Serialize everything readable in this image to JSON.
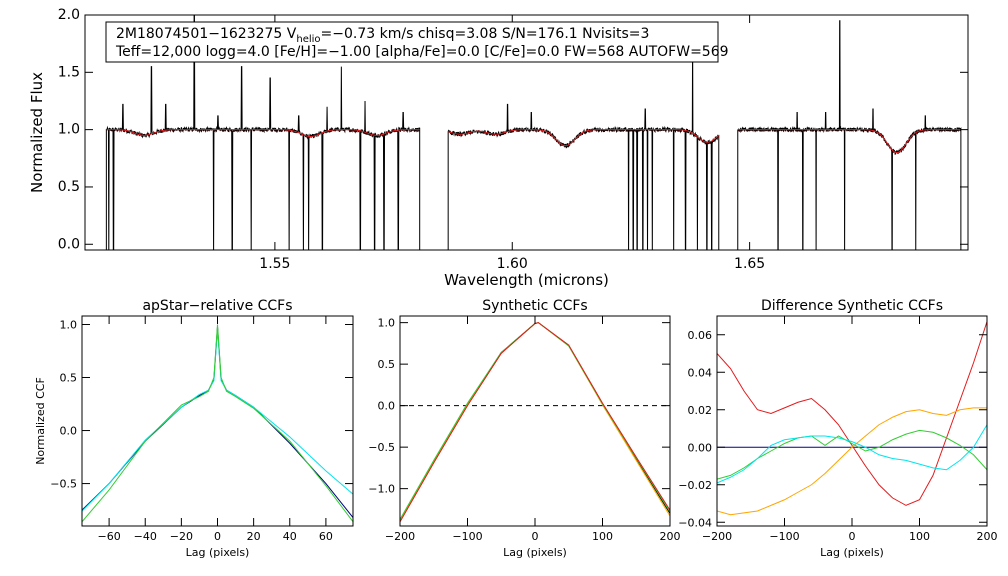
{
  "chart_data": [
    {
      "id": "spectrum",
      "type": "line",
      "xlabel": "Wavelength (microns)",
      "ylabel": "Normalized Flux",
      "xlim": [
        1.51,
        1.696
      ],
      "ylim": [
        -0.05,
        2.0
      ],
      "xticks": [
        1.55,
        1.6,
        1.65
      ],
      "xtick_labels": [
        "1.55",
        "1.60",
        "1.65"
      ],
      "yticks": [
        0.0,
        0.5,
        1.0,
        1.5,
        2.0
      ],
      "ytick_labels": [
        "0.0",
        "0.5",
        "1.0",
        "1.5",
        "2.0"
      ],
      "annotation": {
        "line1_pre": "2M18074501−1623275  V",
        "line1_sub": "helio",
        "line1_post": "=−0.73 km/s  chisq=3.08  S/N=176.1  Nvisits=3",
        "line2": "Teff=12,000 logg=4.0 [Fe/H]=−1.00 [alpha/Fe]=0.0 [C/Fe]=0.0 FW=568 AUTOFW=569"
      },
      "chips": [
        [
          1.5145,
          1.5805
        ],
        [
          1.5865,
          1.6435
        ],
        [
          1.6475,
          1.6945
        ]
      ],
      "absorption_lines": [
        {
          "x": 1.5225,
          "depth": 0.05
        },
        {
          "x": 1.5575,
          "depth": 0.06
        },
        {
          "x": 1.5715,
          "depth": 0.05
        },
        {
          "x": 1.589,
          "depth": 0.04
        },
        {
          "x": 1.5965,
          "depth": 0.04
        },
        {
          "x": 1.6112,
          "depth": 0.14
        },
        {
          "x": 1.6411,
          "depth": 0.11
        },
        {
          "x": 1.681,
          "depth": 0.2
        }
      ],
      "emission_spikes": [
        {
          "x": 1.518,
          "y": 1.22
        },
        {
          "x": 1.524,
          "y": 1.55
        },
        {
          "x": 1.527,
          "y": 1.22
        },
        {
          "x": 1.533,
          "y": 2.0
        },
        {
          "x": 1.538,
          "y": 1.12
        },
        {
          "x": 1.543,
          "y": 1.55
        },
        {
          "x": 1.549,
          "y": 1.45
        },
        {
          "x": 1.555,
          "y": 1.12
        },
        {
          "x": 1.561,
          "y": 1.2
        },
        {
          "x": 1.564,
          "y": 1.55
        },
        {
          "x": 1.569,
          "y": 1.25
        },
        {
          "x": 1.577,
          "y": 1.15
        },
        {
          "x": 1.599,
          "y": 1.22
        },
        {
          "x": 1.604,
          "y": 1.15
        },
        {
          "x": 1.628,
          "y": 1.18
        },
        {
          "x": 1.638,
          "y": 1.85
        },
        {
          "x": 1.66,
          "y": 1.15
        },
        {
          "x": 1.666,
          "y": 1.15
        },
        {
          "x": 1.669,
          "y": 1.95
        },
        {
          "x": 1.676,
          "y": 1.18
        },
        {
          "x": 1.687,
          "y": 1.12
        }
      ],
      "dropouts": [
        1.515,
        1.516,
        1.5371,
        1.541,
        1.545,
        1.553,
        1.556,
        1.5571,
        1.56,
        1.568,
        1.571,
        1.573,
        1.576,
        1.6245,
        1.6255,
        1.6263,
        1.6275,
        1.6285,
        1.6295,
        1.634,
        1.6365,
        1.639,
        1.641,
        1.642,
        1.656,
        1.66,
        1.6612,
        1.664,
        1.67,
        1.676,
        1.68,
        1.685,
        1.687
      ],
      "series": [
        {
          "name": "observed",
          "color": "#000000"
        },
        {
          "name": "model",
          "color": "#e31a1c"
        }
      ]
    },
    {
      "id": "apstar-ccf",
      "type": "line",
      "title": "apStar−relative CCFs",
      "xlabel": "Lag (pixels)",
      "ylabel": "Normalized CCF",
      "xlim": [
        -75,
        75
      ],
      "ylim": [
        -0.9,
        1.08
      ],
      "xticks": [
        -60,
        -40,
        -20,
        0,
        20,
        40,
        60
      ],
      "xtick_labels": [
        "−60",
        "−40",
        "−20",
        "0",
        "20",
        "40",
        "60"
      ],
      "yticks": [
        -0.5,
        0.0,
        0.5,
        1.0
      ],
      "ytick_labels": [
        "−0.5",
        "0.0",
        "0.5",
        "1.0"
      ],
      "series": [
        {
          "name": "ccf-1",
          "color": "#000080",
          "x": [
            -75,
            -60,
            -40,
            -20,
            -10,
            -5,
            -2,
            0,
            2,
            5,
            10,
            20,
            40,
            60,
            75
          ],
          "y": [
            -0.75,
            -0.5,
            -0.1,
            0.22,
            0.33,
            0.38,
            0.48,
            0.98,
            0.48,
            0.38,
            0.33,
            0.22,
            -0.12,
            -0.5,
            -0.82
          ]
        },
        {
          "name": "ccf-2",
          "color": "#00e5ee",
          "x": [
            -75,
            -60,
            -40,
            -20,
            -10,
            -5,
            -2,
            0,
            2,
            5,
            10,
            20,
            40,
            60,
            75
          ],
          "y": [
            -0.76,
            -0.5,
            -0.09,
            0.22,
            0.34,
            0.38,
            0.47,
            0.96,
            0.47,
            0.38,
            0.33,
            0.22,
            -0.06,
            -0.38,
            -0.6
          ]
        },
        {
          "name": "ccf-3",
          "color": "#32cd32",
          "x": [
            -75,
            -60,
            -40,
            -20,
            -10,
            -5,
            -2,
            0,
            2,
            5,
            10,
            20,
            40,
            60,
            75
          ],
          "y": [
            -0.86,
            -0.56,
            -0.1,
            0.24,
            0.32,
            0.37,
            0.5,
            1.0,
            0.5,
            0.37,
            0.32,
            0.21,
            -0.1,
            -0.52,
            -0.86
          ]
        }
      ]
    },
    {
      "id": "synthetic-ccf",
      "type": "line",
      "title": "Synthetic CCFs",
      "xlabel": "Lag (pixels)",
      "xlim": [
        -200,
        200
      ],
      "ylim": [
        -1.45,
        1.08
      ],
      "xticks": [
        -200,
        -100,
        0,
        100,
        200
      ],
      "xtick_labels": [
        "−200",
        "−100",
        "0",
        "100",
        "200"
      ],
      "yticks": [
        -1.0,
        -0.5,
        0.0,
        0.5,
        1.0
      ],
      "ytick_labels": [
        "−1.0",
        "−0.5",
        "0.0",
        "0.5",
        "1.0"
      ],
      "zero_line": 0.0,
      "series": [
        {
          "name": "syn-1",
          "color": "#000000",
          "x": [
            -200,
            -150,
            -100,
            -50,
            0,
            5,
            50,
            100,
            150,
            200
          ],
          "y": [
            -1.38,
            -0.67,
            0.02,
            0.64,
            0.99,
            1.0,
            0.72,
            0.02,
            -0.64,
            -1.3
          ]
        },
        {
          "name": "syn-2",
          "color": "#ffa500",
          "x": [
            -200,
            -150,
            -100,
            -50,
            0,
            5,
            50,
            100,
            150,
            200
          ],
          "y": [
            -1.39,
            -0.68,
            0.01,
            0.63,
            0.99,
            1.0,
            0.72,
            0.01,
            -0.66,
            -1.33
          ]
        },
        {
          "name": "syn-3",
          "color": "#32cd32",
          "x": [
            -200,
            -150,
            -100,
            -50,
            0,
            5,
            50,
            100,
            150,
            200
          ],
          "y": [
            -1.37,
            -0.66,
            0.03,
            0.64,
            0.99,
            1.0,
            0.72,
            0.02,
            -0.63,
            -1.28
          ]
        },
        {
          "name": "syn-4",
          "color": "#e31a1c",
          "x": [
            -200,
            -150,
            -100,
            -50,
            0,
            5,
            50,
            100,
            150,
            200
          ],
          "y": [
            -1.4,
            -0.69,
            0.0,
            0.63,
            0.99,
            1.0,
            0.73,
            0.03,
            -0.62,
            -1.26
          ]
        }
      ]
    },
    {
      "id": "difference-ccf",
      "type": "line",
      "title": "Difference Synthetic CCFs",
      "xlabel": "Lag (pixels)",
      "xlim": [
        -200,
        200
      ],
      "ylim": [
        -0.042,
        0.07
      ],
      "xticks": [
        -200,
        -100,
        0,
        100,
        200
      ],
      "xtick_labels": [
        "−200",
        "−100",
        "0",
        "100",
        "200"
      ],
      "yticks": [
        -0.04,
        -0.02,
        0.0,
        0.02,
        0.04,
        0.06
      ],
      "ytick_labels": [
        "−0.04",
        "−0.02",
        "0.00",
        "0.02",
        "0.04",
        "0.06"
      ],
      "series": [
        {
          "name": "diff-zero",
          "color": "#000080",
          "x": [
            -200,
            200
          ],
          "y": [
            0.0,
            0.0
          ]
        },
        {
          "name": "diff-red",
          "color": "#e31a1c",
          "x": [
            -200,
            -180,
            -160,
            -140,
            -120,
            -100,
            -80,
            -60,
            -40,
            -20,
            0,
            20,
            40,
            60,
            80,
            100,
            120,
            140,
            160,
            180,
            200
          ],
          "y": [
            0.05,
            0.042,
            0.03,
            0.02,
            0.018,
            0.021,
            0.024,
            0.026,
            0.02,
            0.012,
            0.001,
            -0.01,
            -0.02,
            -0.027,
            -0.031,
            -0.028,
            -0.015,
            0.005,
            0.025,
            0.045,
            0.067
          ]
        },
        {
          "name": "diff-orange",
          "color": "#ffa500",
          "x": [
            -200,
            -180,
            -160,
            -140,
            -120,
            -100,
            -80,
            -60,
            -40,
            -20,
            0,
            20,
            40,
            60,
            80,
            100,
            120,
            140,
            160,
            180,
            200
          ],
          "y": [
            -0.034,
            -0.036,
            -0.035,
            -0.034,
            -0.031,
            -0.028,
            -0.024,
            -0.02,
            -0.014,
            -0.007,
            0.0,
            0.006,
            0.012,
            0.016,
            0.019,
            0.02,
            0.018,
            0.017,
            0.02,
            0.021,
            0.021
          ]
        },
        {
          "name": "diff-green",
          "color": "#32cd32",
          "x": [
            -200,
            -180,
            -160,
            -140,
            -120,
            -100,
            -80,
            -60,
            -40,
            -20,
            0,
            20,
            40,
            60,
            80,
            100,
            120,
            140,
            160,
            180,
            200
          ],
          "y": [
            -0.017,
            -0.015,
            -0.011,
            -0.006,
            -0.002,
            0.002,
            0.005,
            0.006,
            0.001,
            0.006,
            0.002,
            -0.002,
            0.0,
            0.004,
            0.007,
            0.009,
            0.008,
            0.005,
            0.001,
            -0.004,
            -0.012
          ]
        },
        {
          "name": "diff-cyan",
          "color": "#00e5ee",
          "x": [
            -200,
            -180,
            -160,
            -140,
            -120,
            -100,
            -80,
            -60,
            -40,
            -20,
            0,
            20,
            40,
            60,
            80,
            100,
            120,
            140,
            160,
            180,
            200
          ],
          "y": [
            -0.019,
            -0.016,
            -0.012,
            -0.006,
            0.001,
            0.004,
            0.005,
            0.006,
            0.006,
            0.005,
            0.003,
            0.0,
            -0.004,
            -0.006,
            -0.007,
            -0.009,
            -0.011,
            -0.012,
            -0.007,
            0.0,
            0.012
          ]
        }
      ]
    }
  ]
}
